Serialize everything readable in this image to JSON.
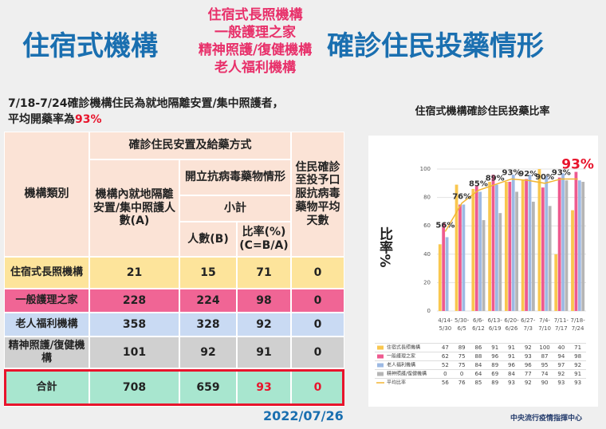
{
  "header": {
    "left": "住宿式機構",
    "center": [
      "住宿式長照機構",
      "一般護理之家",
      "精神照護/復健機構",
      "老人福利機構"
    ],
    "right": "確診住民投藥情形"
  },
  "note": {
    "line1": "7/18-7/24確診機構住民為就地隔離安置/集中照護者，",
    "line2": "平均開藥率為",
    "highlight": "93%"
  },
  "table": {
    "header": [
      "機構類別",
      "確診住民安置及給藥方式",
      "機構內就地隔離安置/集中照護人數(A)",
      "開立抗病毒藥物情形",
      "小計",
      "人數(B)",
      "比率(%)(C=B/A)",
      "住民確診至投予口服抗病毒藥物平均天數"
    ],
    "rows": [
      [
        "住宿式長照機構",
        "21",
        "15",
        "71",
        "0"
      ],
      [
        "一般護理之家",
        "228",
        "224",
        "98",
        "0"
      ],
      [
        "老人福利機構",
        "358",
        "328",
        "92",
        "0"
      ],
      [
        "精神照護/復健機構",
        "101",
        "92",
        "91",
        "0"
      ],
      [
        "合計",
        "708",
        "659",
        "93",
        "0"
      ]
    ]
  },
  "chart_data": {
    "type": "bar",
    "title": "住宿式機構確診住民投藥比率",
    "y_label": "比率%",
    "categories": [
      "4/14-5/30",
      "5/30-6/5",
      "6/6-6/12",
      "6/13-6/19",
      "6/20-6/26",
      "6/27-7/3",
      "7/4-7/10",
      "7/11-7/17",
      "7/18-7/24"
    ],
    "series": [
      {
        "name": "住宿式長照機構",
        "color": "#f9c74f",
        "values": [
          47,
          89,
          86,
          91,
          91,
          92,
          100,
          40,
          71
        ]
      },
      {
        "name": "一般護理之家",
        "color": "#ee5a8f",
        "values": [
          62,
          75,
          88,
          96,
          91,
          93,
          87,
          94,
          98
        ]
      },
      {
        "name": "老人福利機構",
        "color": "#9db9e3",
        "values": [
          52,
          75,
          84,
          89,
          96,
          96,
          95,
          97,
          92
        ]
      },
      {
        "name": "精神照護/復健機構",
        "color": "#b5b5b5",
        "values": [
          0,
          0,
          64,
          69,
          84,
          77,
          74,
          92,
          91
        ]
      },
      {
        "name": "平均比率",
        "type": "line",
        "color": "#f2b632",
        "values": [
          56,
          76,
          85,
          89,
          93,
          92,
          90,
          93,
          93
        ],
        "value_labels": [
          "56%",
          "76%",
          "85%",
          "89%",
          "93%",
          "92%",
          "90%",
          "93%",
          "93%"
        ]
      }
    ],
    "ylim": [
      0,
      100
    ],
    "yticks": [
      0,
      20,
      40,
      60,
      80,
      100
    ],
    "grid": true
  },
  "footer": {
    "date": "2022/07/26",
    "org": "中央流行疫情指揮中心"
  }
}
